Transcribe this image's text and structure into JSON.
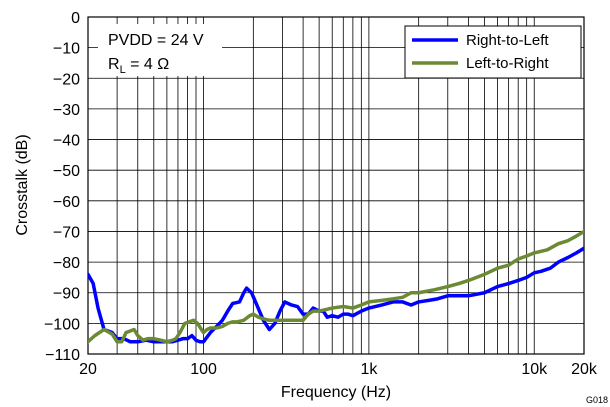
{
  "chart_data": {
    "type": "line",
    "xlabel": "Frequency (Hz)",
    "ylabel": "Crosstalk (dB)",
    "x_scale": "log",
    "xlim": [
      20,
      20000
    ],
    "ylim": [
      -110,
      0
    ],
    "x_ticks": [
      20,
      100,
      1000,
      10000,
      20000
    ],
    "x_tick_labels": [
      "20",
      "100",
      "1k",
      "10k",
      "20k"
    ],
    "y_ticks": [
      0,
      -10,
      -20,
      -30,
      -40,
      -50,
      -60,
      -70,
      -80,
      -90,
      -100,
      -110
    ],
    "y_tick_labels": [
      "0",
      "−10",
      "−20",
      "−30",
      "−40",
      "−50",
      "−60",
      "−70",
      "−80",
      "−90",
      "−100",
      "−110"
    ],
    "grid": true,
    "legend_position": "top-right",
    "annotation": {
      "line1": "PVDD = 24 V",
      "line2_main": "R",
      "line2_sub": "L",
      "line2_rest": " = 4 Ω"
    },
    "figure_id": "G018",
    "series": [
      {
        "name": "Right-to-Left",
        "color": "#0000ff",
        "points": [
          [
            20,
            -84
          ],
          [
            21.5,
            -87
          ],
          [
            23,
            -95
          ],
          [
            25,
            -102
          ],
          [
            28,
            -103
          ],
          [
            30,
            -105
          ],
          [
            33,
            -105
          ],
          [
            36,
            -106
          ],
          [
            40,
            -106
          ],
          [
            45,
            -105.5
          ],
          [
            50,
            -106
          ],
          [
            55,
            -106
          ],
          [
            60,
            -106
          ],
          [
            65,
            -106
          ],
          [
            70,
            -105.5
          ],
          [
            75,
            -105
          ],
          [
            80,
            -105
          ],
          [
            85,
            -104
          ],
          [
            90,
            -105.5
          ],
          [
            95,
            -106
          ],
          [
            100,
            -106
          ],
          [
            110,
            -103
          ],
          [
            120,
            -101
          ],
          [
            130,
            -99
          ],
          [
            140,
            -96
          ],
          [
            150,
            -93.5
          ],
          [
            165,
            -93
          ],
          [
            175,
            -90
          ],
          [
            182,
            -88.5
          ],
          [
            195,
            -90
          ],
          [
            210,
            -94
          ],
          [
            230,
            -99
          ],
          [
            250,
            -102
          ],
          [
            270,
            -100
          ],
          [
            290,
            -96
          ],
          [
            310,
            -93
          ],
          [
            340,
            -94
          ],
          [
            370,
            -94.5
          ],
          [
            400,
            -97
          ],
          [
            430,
            -97
          ],
          [
            460,
            -95
          ],
          [
            500,
            -96
          ],
          [
            530,
            -96
          ],
          [
            560,
            -98
          ],
          [
            600,
            -97.5
          ],
          [
            650,
            -98
          ],
          [
            700,
            -97
          ],
          [
            750,
            -97
          ],
          [
            800,
            -97.5
          ],
          [
            900,
            -96
          ],
          [
            1000,
            -95
          ],
          [
            1200,
            -94
          ],
          [
            1400,
            -93
          ],
          [
            1600,
            -93
          ],
          [
            1800,
            -94
          ],
          [
            2000,
            -93
          ],
          [
            2300,
            -92.5
          ],
          [
            2600,
            -92
          ],
          [
            3000,
            -91
          ],
          [
            3500,
            -91
          ],
          [
            4000,
            -91
          ],
          [
            5000,
            -90
          ],
          [
            6000,
            -88
          ],
          [
            7000,
            -87
          ],
          [
            8000,
            -86
          ],
          [
            9000,
            -85
          ],
          [
            10000,
            -83.5
          ],
          [
            11000,
            -83
          ],
          [
            12500,
            -82
          ],
          [
            14000,
            -80
          ],
          [
            16000,
            -78.5
          ],
          [
            18000,
            -77
          ],
          [
            20000,
            -75.5
          ]
        ]
      },
      {
        "name": "Left-to-Right",
        "color": "#6b8a33",
        "points": [
          [
            20,
            -106
          ],
          [
            22,
            -104
          ],
          [
            25,
            -102
          ],
          [
            28,
            -103.5
          ],
          [
            30,
            -106
          ],
          [
            32,
            -106
          ],
          [
            34,
            -103
          ],
          [
            36,
            -102.5
          ],
          [
            38,
            -102
          ],
          [
            40,
            -104
          ],
          [
            43,
            -105.5
          ],
          [
            46,
            -105
          ],
          [
            50,
            -105
          ],
          [
            55,
            -105.5
          ],
          [
            60,
            -106
          ],
          [
            65,
            -105.5
          ],
          [
            68,
            -105
          ],
          [
            72,
            -103
          ],
          [
            77,
            -100
          ],
          [
            82,
            -99.5
          ],
          [
            87,
            -99
          ],
          [
            92,
            -100
          ],
          [
            97,
            -102
          ],
          [
            100,
            -103
          ],
          [
            105,
            -102
          ],
          [
            110,
            -101.5
          ],
          [
            120,
            -101.5
          ],
          [
            130,
            -101
          ],
          [
            140,
            -100
          ],
          [
            150,
            -99.5
          ],
          [
            160,
            -99.5
          ],
          [
            175,
            -99
          ],
          [
            190,
            -97.5
          ],
          [
            200,
            -97
          ],
          [
            215,
            -98
          ],
          [
            230,
            -98.5
          ],
          [
            250,
            -99
          ],
          [
            280,
            -99
          ],
          [
            300,
            -99
          ],
          [
            330,
            -99
          ],
          [
            360,
            -99
          ],
          [
            400,
            -99
          ],
          [
            430,
            -97
          ],
          [
            460,
            -96
          ],
          [
            500,
            -96
          ],
          [
            550,
            -95.5
          ],
          [
            600,
            -95
          ],
          [
            700,
            -94.5
          ],
          [
            800,
            -95
          ],
          [
            900,
            -94
          ],
          [
            1000,
            -93
          ],
          [
            1200,
            -92.5
          ],
          [
            1400,
            -92
          ],
          [
            1600,
            -91.5
          ],
          [
            1800,
            -90
          ],
          [
            2000,
            -90
          ],
          [
            2500,
            -89
          ],
          [
            3000,
            -88
          ],
          [
            3500,
            -87
          ],
          [
            4000,
            -86
          ],
          [
            5000,
            -84
          ],
          [
            6000,
            -82
          ],
          [
            7000,
            -81
          ],
          [
            8000,
            -79
          ],
          [
            9000,
            -78
          ],
          [
            10000,
            -77
          ],
          [
            12000,
            -76
          ],
          [
            14000,
            -74
          ],
          [
            16000,
            -73
          ],
          [
            18000,
            -71.5
          ],
          [
            20000,
            -70
          ]
        ]
      }
    ]
  }
}
